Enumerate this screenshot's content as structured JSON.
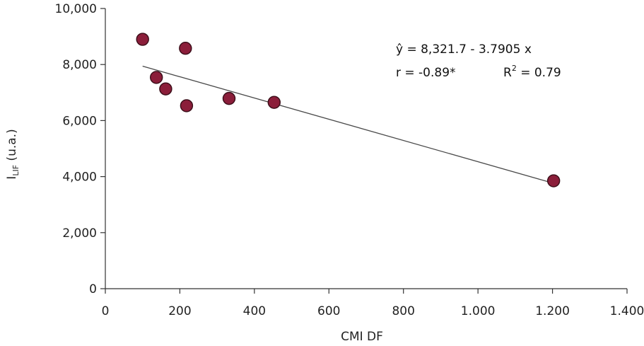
{
  "chart_data": {
    "type": "scatter",
    "xlabel": "CMI DF",
    "ylabel": "I",
    "ylabel_sub": "LIF",
    "ylabel_suffix": " (u.a.)",
    "xlim": [
      0,
      1400
    ],
    "ylim": [
      0,
      10000
    ],
    "x_ticks": [
      0,
      200,
      400,
      600,
      800,
      1000,
      1200,
      1400
    ],
    "x_tick_labels": [
      "0",
      "200",
      "400",
      "600",
      "800",
      "1.000",
      "1.200",
      "1.400"
    ],
    "y_ticks": [
      0,
      2000,
      4000,
      6000,
      8000,
      10000
    ],
    "y_tick_labels": [
      "0",
      "2,000",
      "4,000",
      "6,000",
      "8,000",
      "10,000"
    ],
    "grid": false,
    "point_color": "#8b1e3a",
    "points": [
      {
        "x": 100,
        "y": 8900
      },
      {
        "x": 215,
        "y": 8580
      },
      {
        "x": 137,
        "y": 7540
      },
      {
        "x": 162,
        "y": 7130
      },
      {
        "x": 218,
        "y": 6530
      },
      {
        "x": 332,
        "y": 6790
      },
      {
        "x": 453,
        "y": 6650
      },
      {
        "x": 1203,
        "y": 3850
      }
    ],
    "trendline": {
      "intercept": 8321.7,
      "slope": -3.7905,
      "x_range": [
        100,
        1203
      ]
    },
    "annotations": {
      "equation": "ŷ = 8,321.7 - 3.7905 x",
      "r": "r = -0.89*",
      "r2_prefix": "R",
      "r2_sup": "2",
      "r2_suffix": " = 0.79"
    }
  }
}
